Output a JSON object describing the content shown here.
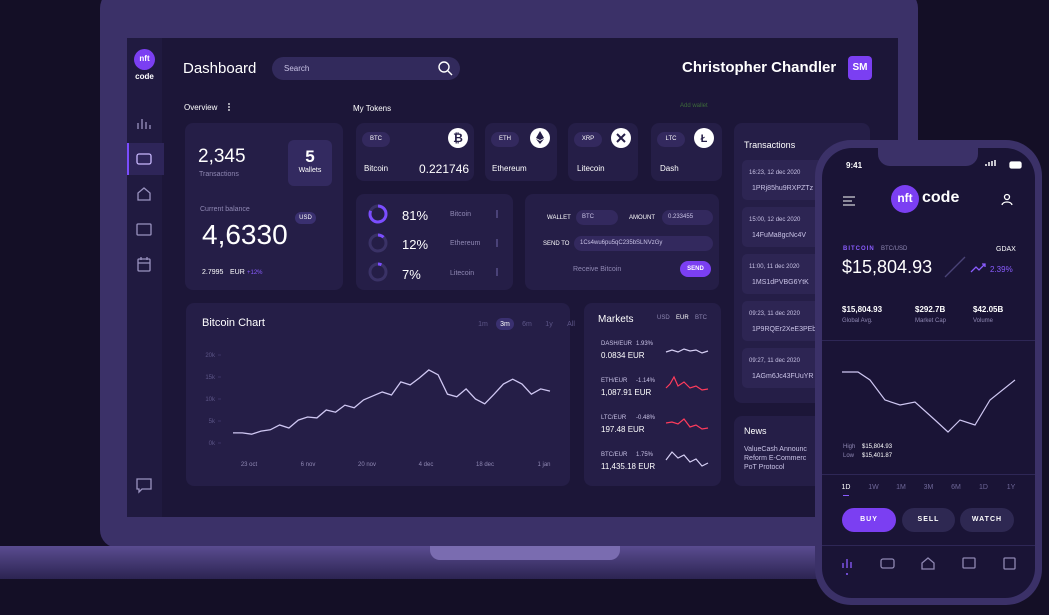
{
  "sidebar": {
    "logo_top": "nft",
    "logo_bottom": "code"
  },
  "header": {
    "title": "Dashboard",
    "search": "Search",
    "user": "Christopher Chandler",
    "avatar": "SM"
  },
  "overview": {
    "label": "Overview",
    "transactions_count": "2,345",
    "transactions_label": "Transactions",
    "wallets_count": "5",
    "wallets_label": "Wallets",
    "balance_label": "Current balance",
    "currency": "USD",
    "balance": "4,6330",
    "eur_value": "2.7995",
    "eur_label": "EUR",
    "change": "+12%"
  },
  "tokens": {
    "label": "My Tokens",
    "add": "Add wallet",
    "items": [
      {
        "code": "BTC",
        "name": "Bitcoin",
        "value": "0.221746"
      },
      {
        "code": "ETH",
        "name": "Ethereum"
      },
      {
        "code": "XRP",
        "name": "Litecoin"
      },
      {
        "code": "LTC",
        "name": "Dash"
      }
    ]
  },
  "allocation": [
    {
      "value": 81,
      "label": "81%",
      "name": "Bitcoin"
    },
    {
      "value": 12,
      "label": "12%",
      "name": "Ethereum"
    },
    {
      "value": 7,
      "label": "7%",
      "name": "Litecoin"
    }
  ],
  "send": {
    "wallet_label": "WALLET",
    "wallet": "BTC",
    "amount_label": "AMOUNT",
    "amount": "0.233455",
    "send_to_label": "SEND TO",
    "address": "1Cs4wu6pu5qC235bSLNVzGy",
    "receive": "Receive Bitcoin",
    "button": "SEND"
  },
  "bitcoin_chart": {
    "title": "Bitcoin Chart",
    "ranges": [
      "1m",
      "3m",
      "6m",
      "1y",
      "All"
    ],
    "active_range": 1,
    "ylim": [
      0,
      20
    ],
    "yticks": [
      {
        "value": 20,
        "label": "20k"
      },
      {
        "value": 15,
        "label": "15k"
      },
      {
        "value": 10,
        "label": "10k"
      },
      {
        "value": 5,
        "label": "5k"
      },
      {
        "value": 0,
        "label": "0k"
      }
    ],
    "x_labels": [
      "23 oct",
      "6 nov",
      "20 nov",
      "4 dec",
      "18 dec",
      "1 jan"
    ],
    "values": [
      2.3,
      2.3,
      2.0,
      2.7,
      3.0,
      4.1,
      3.4,
      5.2,
      5.9,
      5.7,
      7.5,
      7.0,
      8.6,
      8.0,
      9.8,
      10.7,
      11.6,
      10.9,
      13.9,
      13.2,
      14.8,
      16.6,
      15.5,
      11.1,
      10.5,
      12.3,
      10.0,
      8.9,
      11.1,
      13.4,
      14.5,
      13.4,
      11.1,
      12.3,
      11.8
    ]
  },
  "markets": {
    "title": "Markets",
    "tabs": [
      "USD",
      "EUR",
      "BTC"
    ],
    "active_tab": 1,
    "items": [
      {
        "pair": "DASH/EUR",
        "change": "1.93%",
        "price": "0.0834 EUR"
      },
      {
        "pair": "ETH/EUR",
        "change": "-1.14%",
        "price": "1,087.91 EUR"
      },
      {
        "pair": "LTC/EUR",
        "change": "-0.48%",
        "price": "197.48 EUR"
      },
      {
        "pair": "BTC/EUR",
        "change": "1.75%",
        "price": "11,435.18 EUR"
      }
    ]
  },
  "transactions": {
    "title": "Transactions",
    "items": [
      {
        "time": "16:23, 12 dec 2020",
        "address": "1PRj85hu9RXPZTz"
      },
      {
        "time": "15:00, 12 dec 2020",
        "address": "14FuMa8gcNc4V"
      },
      {
        "time": "11:00, 11 dec 2020",
        "address": "1MS1dPVBG6YtK"
      },
      {
        "time": "09:23, 11 dec 2020",
        "address": "1P9RQEr2XeE3PEb"
      },
      {
        "time": "09:27, 11 dec 2020",
        "address": "1AGm6Jc43FUuYR"
      }
    ]
  },
  "news": {
    "title": "News",
    "lines": [
      "ValueCash Announc",
      "Reform E-Commerc",
      "PoT Protocol"
    ]
  },
  "phone": {
    "time": "9:41",
    "logo_a": "nft",
    "logo_b": "code",
    "coin": "BITCOIN",
    "pair": "BTC/USD",
    "exchange": "GDAX",
    "price": "$15,804.93",
    "change": "2.39%",
    "stats": [
      {
        "value": "$15,804.93",
        "label": "Global Avg."
      },
      {
        "value": "$292.7B",
        "label": "Market Cap"
      },
      {
        "value": "$42.05B",
        "label": "Volume"
      }
    ],
    "high_label": "High",
    "high": "$15,804.93",
    "low_label": "Low",
    "low": "$15,401.87",
    "ranges": [
      "1D",
      "1W",
      "1M",
      "3M",
      "6M",
      "1D",
      "1Y"
    ],
    "active_range": 0,
    "buttons": [
      "BUY",
      "SELL",
      "WATCH"
    ]
  }
}
